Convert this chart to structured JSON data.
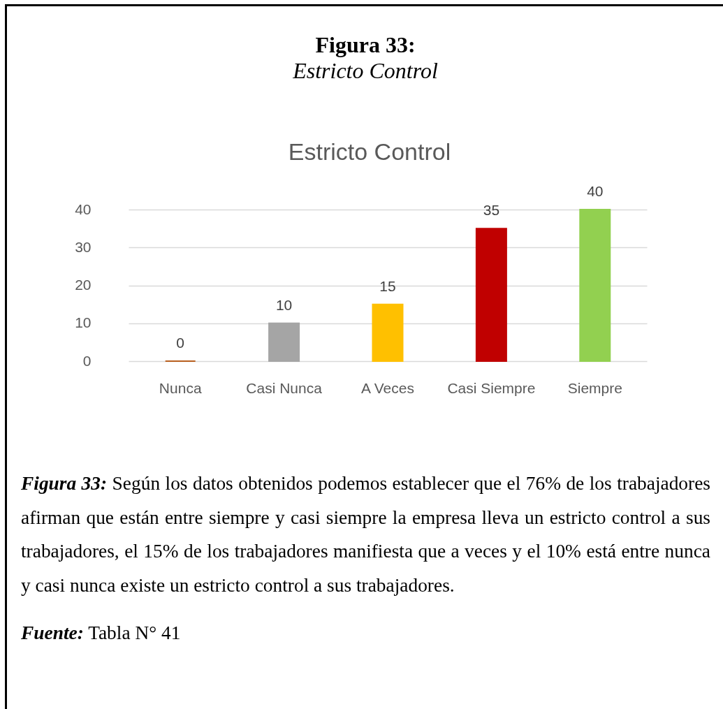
{
  "chart_data": {
    "type": "bar",
    "title": "Estricto Control",
    "categories": [
      "Nunca",
      "Casi Nunca",
      "A Veces",
      "Casi Siempre",
      "Siempre"
    ],
    "values": [
      0,
      10,
      15,
      35,
      40
    ],
    "colors": [
      "#b9601f",
      "#a5a5a5",
      "#ffc000",
      "#c00000",
      "#92d050"
    ],
    "ylim": [
      0,
      40
    ],
    "yticks": [
      0,
      10,
      20,
      30,
      40
    ],
    "grid": "y",
    "data_labels": true,
    "annotations": [
      "Figura 33:",
      "Estricto Control",
      "Figura 33: Según los datos obtenidos podemos establecer que el 76% de los trabajadores afirman que están entre siempre y casi siempre la empresa lleva un estricto control a sus trabajadores, el 15% de los trabajadores manifiesta que a veces y el 10% está entre nunca y casi nunca existe un estricto control a sus trabajadores.",
      "Fuente: Tabla N° 41"
    ]
  }
}
